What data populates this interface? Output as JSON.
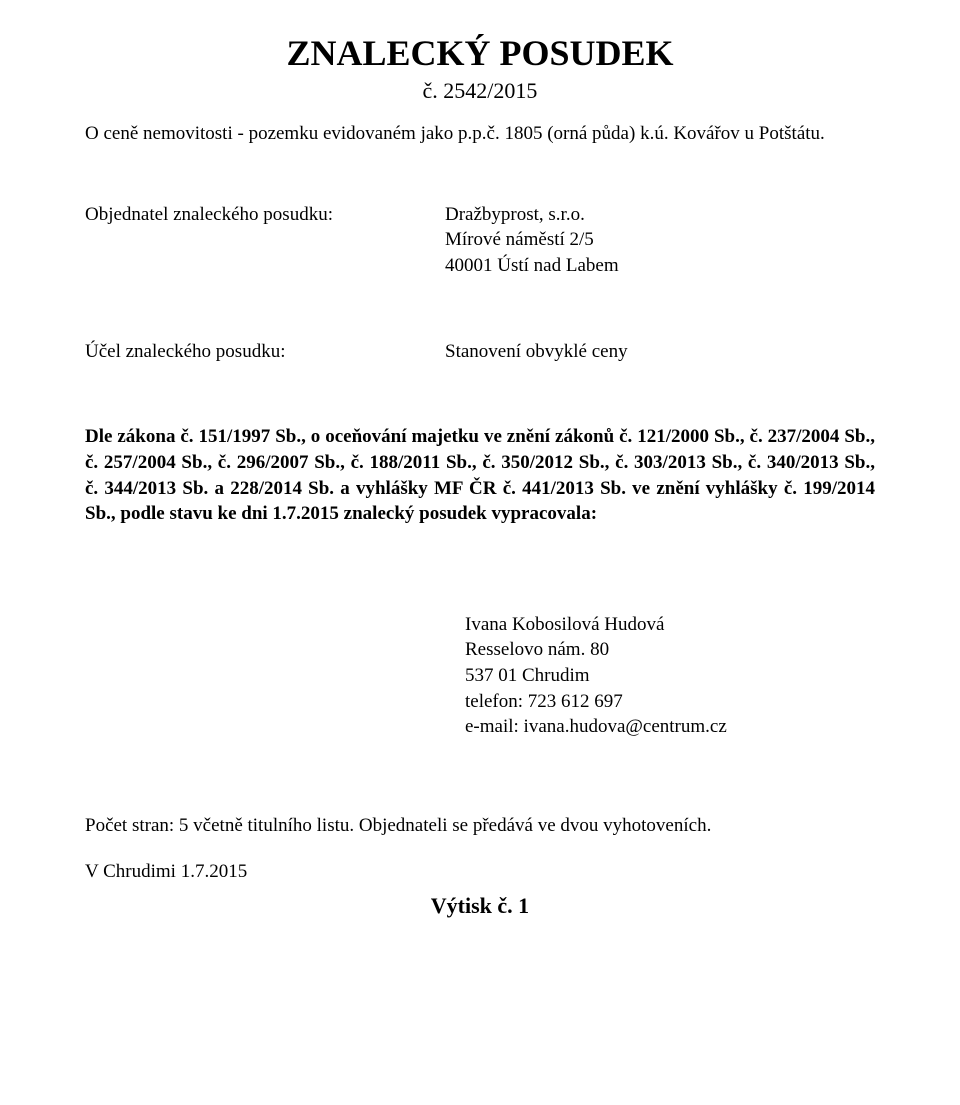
{
  "colors": {
    "text": "#000000",
    "background": "#ffffff"
  },
  "fonts": {
    "body_family": "Times New Roman",
    "title_size_pt": 27,
    "subtitle_size_pt": 16,
    "body_size_pt": 14
  },
  "title": "ZNALECKÝ POSUDEK",
  "title_number": "č. 2542/2015",
  "subject": "O ceně nemovitosti - pozemku evidovaném jako p.p.č. 1805 (orná půda) k.ú. Kovářov u Potštátu.",
  "client": {
    "label": "Objednatel znaleckého posudku:",
    "name": "Dražbyprost, s.r.o.",
    "address_line1": "Mírové náměstí 2/5",
    "address_line2": "40001 Ústí nad Labem"
  },
  "purpose": {
    "label": "Účel znaleckého posudku:",
    "value": "Stanovení obvyklé ceny"
  },
  "law_text": "Dle zákona č. 151/1997 Sb., o oceňování majetku ve znění zákonů č. 121/2000 Sb., č. 237/2004 Sb., č. 257/2004 Sb., č. 296/2007 Sb., č. 188/2011 Sb., č. 350/2012 Sb., č. 303/2013 Sb., č. 340/2013 Sb., č. 344/2013 Sb. a 228/2014 Sb. a vyhlášky MF ČR č. 441/2013 Sb. ve znění vyhlášky č. 199/2014 Sb., podle stavu ke dni 1.7.2015 znalecký posudek vypracovala:",
  "author": {
    "name": "Ivana Kobosilová Hudová",
    "address_line1": "Resselovo nám. 80",
    "address_line2": "537 01 Chrudim",
    "phone": "telefon: 723 612 697",
    "email": "e-mail: ivana.hudova@centrum.cz"
  },
  "footer": {
    "pages_note": "Počet stran: 5 včetně titulního listu. Objednateli se předává ve dvou vyhotoveních.",
    "place_date": "V Chrudimi 1.7.2015",
    "print_number": "Výtisk č. 1"
  }
}
